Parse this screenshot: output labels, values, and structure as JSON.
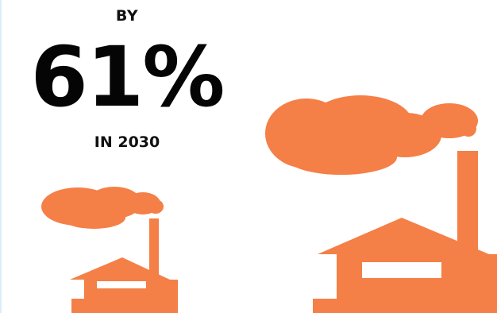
{
  "stat": {
    "prefix": "BY",
    "value": "61%",
    "suffix": "IN 2030"
  },
  "icons": {
    "small": "factory-icon",
    "large": "factory-icon"
  },
  "colors": {
    "factory": "#f47f47",
    "text": "#050505",
    "background": "#ffffff"
  }
}
